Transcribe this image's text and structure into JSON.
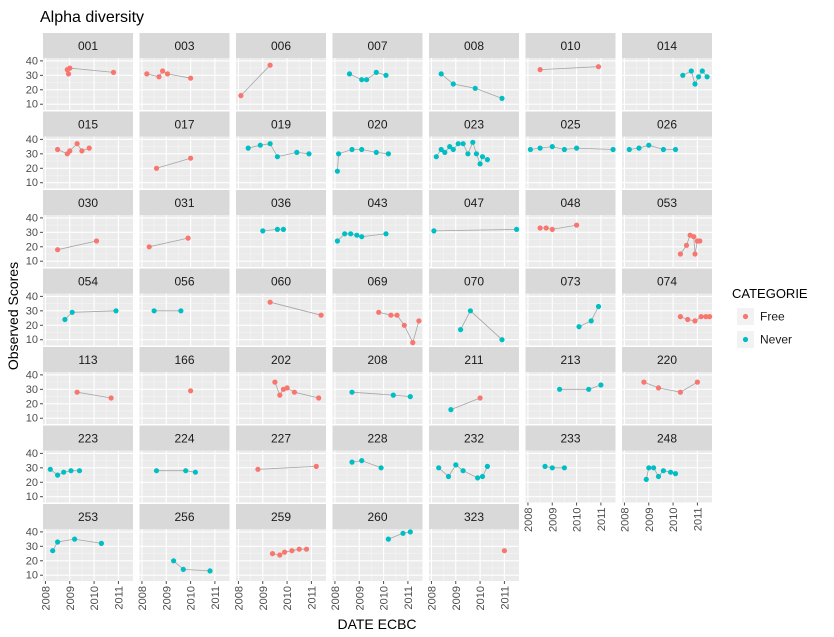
{
  "chart_data": {
    "type": "line",
    "title": "Alpha diversity",
    "xlabel": "DATE ECBC",
    "ylabel": "Observed Scores",
    "xlim": [
      2007.9,
      2011.6
    ],
    "ylim": [
      6,
      42
    ],
    "x_ticks": [
      "2008",
      "2009",
      "2010",
      "2011"
    ],
    "y_ticks": [
      "10",
      "20",
      "30",
      "40"
    ],
    "facet_layout": "7 columns x 7 rows (wrap)",
    "grid": true,
    "legend": {
      "title": "CATEGORIE",
      "position": "right",
      "entries": [
        {
          "label": "Free",
          "color": "#F8766D"
        },
        {
          "label": "Never",
          "color": "#00BFC4"
        }
      ]
    },
    "series": [
      {
        "panel": "001",
        "category": "Free",
        "points": [
          [
            2008.9,
            34
          ],
          [
            2008.95,
            31
          ],
          [
            2009.0,
            35
          ],
          [
            2010.8,
            32
          ]
        ]
      },
      {
        "panel": "003",
        "category": "Free",
        "points": [
          [
            2008.2,
            31
          ],
          [
            2008.7,
            29
          ],
          [
            2008.85,
            33
          ],
          [
            2009.05,
            31
          ],
          [
            2010.0,
            28
          ]
        ]
      },
      {
        "panel": "006",
        "category": "Free",
        "points": [
          [
            2008.1,
            16
          ],
          [
            2009.3,
            37
          ]
        ]
      },
      {
        "panel": "007",
        "category": "Never",
        "points": [
          [
            2008.6,
            31
          ],
          [
            2009.1,
            27
          ],
          [
            2009.3,
            27
          ],
          [
            2009.7,
            32
          ],
          [
            2010.1,
            30
          ]
        ]
      },
      {
        "panel": "008",
        "category": "Never",
        "points": [
          [
            2008.4,
            31
          ],
          [
            2008.9,
            24
          ],
          [
            2009.8,
            21
          ],
          [
            2010.9,
            14
          ]
        ]
      },
      {
        "panel": "010",
        "category": "Free",
        "points": [
          [
            2008.5,
            34
          ],
          [
            2010.9,
            36
          ]
        ]
      },
      {
        "panel": "014",
        "category": "Never",
        "points": [
          [
            2010.4,
            30
          ],
          [
            2010.75,
            33
          ],
          [
            2010.9,
            24
          ],
          [
            2011.05,
            29
          ],
          [
            2011.2,
            33
          ],
          [
            2011.4,
            29
          ]
        ]
      },
      {
        "panel": "015",
        "category": "Free",
        "points": [
          [
            2008.5,
            33
          ],
          [
            2008.9,
            30
          ],
          [
            2009.0,
            32
          ],
          [
            2009.3,
            37
          ],
          [
            2009.5,
            32
          ],
          [
            2009.8,
            34
          ]
        ]
      },
      {
        "panel": "017",
        "category": "Free",
        "points": [
          [
            2008.6,
            20
          ],
          [
            2010.0,
            27
          ]
        ]
      },
      {
        "panel": "019",
        "category": "Never",
        "points": [
          [
            2008.4,
            34
          ],
          [
            2008.9,
            36
          ],
          [
            2009.3,
            37
          ],
          [
            2009.6,
            28
          ],
          [
            2010.4,
            31
          ],
          [
            2010.9,
            30
          ]
        ]
      },
      {
        "panel": "020",
        "category": "Never",
        "points": [
          [
            2008.1,
            18
          ],
          [
            2008.15,
            30
          ],
          [
            2008.7,
            33
          ],
          [
            2009.1,
            33
          ],
          [
            2009.7,
            31
          ],
          [
            2010.2,
            30
          ]
        ]
      },
      {
        "panel": "023",
        "category": "Never",
        "points": [
          [
            2008.2,
            28
          ],
          [
            2008.4,
            33
          ],
          [
            2008.55,
            31
          ],
          [
            2008.75,
            35
          ],
          [
            2008.9,
            33
          ],
          [
            2009.1,
            37
          ],
          [
            2009.3,
            37
          ],
          [
            2009.5,
            30
          ],
          [
            2009.7,
            38
          ],
          [
            2009.85,
            30
          ],
          [
            2010.0,
            23
          ],
          [
            2010.1,
            28
          ],
          [
            2010.3,
            26
          ]
        ]
      },
      {
        "panel": "025",
        "category": "Never",
        "points": [
          [
            2008.1,
            33
          ],
          [
            2008.5,
            34
          ],
          [
            2009.0,
            35
          ],
          [
            2009.5,
            33
          ],
          [
            2010.0,
            34
          ],
          [
            2011.5,
            33
          ]
        ]
      },
      {
        "panel": "026",
        "category": "Never",
        "points": [
          [
            2008.2,
            33
          ],
          [
            2008.6,
            34
          ],
          [
            2009.0,
            36
          ],
          [
            2009.6,
            33
          ],
          [
            2010.1,
            33
          ]
        ]
      },
      {
        "panel": "030",
        "category": "Free",
        "points": [
          [
            2008.5,
            18
          ],
          [
            2010.1,
            24
          ]
        ]
      },
      {
        "panel": "031",
        "category": "Free",
        "points": [
          [
            2008.3,
            20
          ],
          [
            2009.9,
            26
          ]
        ]
      },
      {
        "panel": "036",
        "category": "Never",
        "points": [
          [
            2009.0,
            31
          ],
          [
            2009.6,
            32
          ],
          [
            2009.85,
            32
          ]
        ]
      },
      {
        "panel": "043",
        "category": "Never",
        "points": [
          [
            2008.1,
            24
          ],
          [
            2008.4,
            29
          ],
          [
            2008.65,
            29
          ],
          [
            2008.9,
            28
          ],
          [
            2009.1,
            27
          ],
          [
            2010.1,
            29
          ]
        ]
      },
      {
        "panel": "047",
        "category": "Never",
        "points": [
          [
            2008.1,
            31
          ],
          [
            2011.5,
            32
          ]
        ]
      },
      {
        "panel": "048",
        "category": "Free",
        "points": [
          [
            2008.5,
            33
          ],
          [
            2008.75,
            33
          ],
          [
            2009.0,
            32
          ],
          [
            2010.0,
            35
          ]
        ]
      },
      {
        "panel": "053",
        "category": "Free",
        "points": [
          [
            2010.3,
            15
          ],
          [
            2010.55,
            21
          ],
          [
            2010.7,
            28
          ],
          [
            2010.85,
            27
          ],
          [
            2010.9,
            15
          ],
          [
            2011.0,
            24
          ],
          [
            2011.1,
            24
          ]
        ]
      },
      {
        "panel": "054",
        "category": "Never",
        "points": [
          [
            2008.8,
            24
          ],
          [
            2009.1,
            29
          ],
          [
            2010.9,
            30
          ]
        ]
      },
      {
        "panel": "056",
        "category": "Never",
        "points": [
          [
            2008.5,
            30
          ],
          [
            2009.6,
            30
          ]
        ]
      },
      {
        "panel": "060",
        "category": "Free",
        "points": [
          [
            2009.3,
            36
          ],
          [
            2011.4,
            27
          ]
        ]
      },
      {
        "panel": "069",
        "category": "Free",
        "points": [
          [
            2009.8,
            29
          ],
          [
            2010.3,
            27
          ],
          [
            2010.55,
            27
          ],
          [
            2010.85,
            20
          ],
          [
            2011.2,
            8
          ],
          [
            2011.45,
            23
          ]
        ]
      },
      {
        "panel": "070",
        "category": "Never",
        "points": [
          [
            2009.2,
            17
          ],
          [
            2009.6,
            30
          ],
          [
            2010.9,
            10
          ]
        ]
      },
      {
        "panel": "073",
        "category": "Never",
        "points": [
          [
            2010.1,
            19
          ],
          [
            2010.6,
            23
          ],
          [
            2010.9,
            33
          ]
        ]
      },
      {
        "panel": "074",
        "category": "Free",
        "points": [
          [
            2010.3,
            26
          ],
          [
            2010.6,
            24
          ],
          [
            2010.9,
            23
          ],
          [
            2011.15,
            26
          ],
          [
            2011.35,
            26
          ],
          [
            2011.5,
            26
          ]
        ]
      },
      {
        "panel": "113",
        "category": "Free",
        "points": [
          [
            2009.3,
            28
          ],
          [
            2010.7,
            24
          ]
        ]
      },
      {
        "panel": "166",
        "category": "Free",
        "points": [
          [
            2010.0,
            29
          ]
        ]
      },
      {
        "panel": "202",
        "category": "Free",
        "points": [
          [
            2009.5,
            35
          ],
          [
            2009.7,
            26
          ],
          [
            2009.85,
            30
          ],
          [
            2010.0,
            31
          ],
          [
            2010.3,
            28
          ],
          [
            2011.3,
            24
          ]
        ]
      },
      {
        "panel": "208",
        "category": "Never",
        "points": [
          [
            2008.7,
            28
          ],
          [
            2010.4,
            26
          ],
          [
            2011.1,
            25
          ]
        ]
      },
      {
        "panel": "211",
        "category": "Never",
        "points": [
          [
            2008.8,
            16
          ]
        ]
      },
      {
        "panel": "211",
        "category": "Free",
        "points": [
          [
            2010.0,
            24
          ]
        ]
      },
      {
        "panel": "213",
        "category": "Never",
        "points": [
          [
            2009.3,
            30
          ],
          [
            2010.5,
            30
          ],
          [
            2011.0,
            33
          ]
        ]
      },
      {
        "panel": "220",
        "category": "Free",
        "points": [
          [
            2008.8,
            35
          ],
          [
            2009.4,
            31
          ],
          [
            2010.3,
            28
          ],
          [
            2011.0,
            35
          ]
        ]
      },
      {
        "panel": "223",
        "category": "Never",
        "points": [
          [
            2008.2,
            29
          ],
          [
            2008.5,
            25
          ],
          [
            2008.75,
            27
          ],
          [
            2009.05,
            28
          ],
          [
            2009.4,
            28
          ]
        ]
      },
      {
        "panel": "224",
        "category": "Never",
        "points": [
          [
            2008.6,
            28
          ],
          [
            2009.8,
            28
          ],
          [
            2010.2,
            27
          ]
        ]
      },
      {
        "panel": "227",
        "category": "Free",
        "points": [
          [
            2008.8,
            29
          ],
          [
            2011.2,
            31
          ]
        ]
      },
      {
        "panel": "228",
        "category": "Never",
        "points": [
          [
            2008.7,
            34
          ],
          [
            2009.1,
            35
          ],
          [
            2009.9,
            30
          ]
        ]
      },
      {
        "panel": "232",
        "category": "Never",
        "points": [
          [
            2008.3,
            30
          ],
          [
            2008.7,
            24
          ],
          [
            2009.0,
            32
          ],
          [
            2009.3,
            28
          ],
          [
            2009.9,
            23
          ],
          [
            2010.1,
            24
          ],
          [
            2010.3,
            31
          ]
        ]
      },
      {
        "panel": "233",
        "category": "Never",
        "points": [
          [
            2008.7,
            31
          ],
          [
            2009.0,
            30
          ],
          [
            2009.5,
            30
          ]
        ]
      },
      {
        "panel": "248",
        "category": "Never",
        "points": [
          [
            2008.9,
            22
          ],
          [
            2009.0,
            30
          ],
          [
            2009.2,
            30
          ],
          [
            2009.4,
            24
          ],
          [
            2009.6,
            28
          ],
          [
            2009.9,
            27
          ],
          [
            2010.1,
            26
          ]
        ]
      },
      {
        "panel": "253",
        "category": "Never",
        "points": [
          [
            2008.3,
            27
          ],
          [
            2008.5,
            33
          ],
          [
            2009.2,
            35
          ],
          [
            2010.3,
            32
          ]
        ]
      },
      {
        "panel": "256",
        "category": "Never",
        "points": [
          [
            2009.3,
            20
          ],
          [
            2009.7,
            14
          ],
          [
            2010.8,
            13
          ]
        ]
      },
      {
        "panel": "259",
        "category": "Free",
        "points": [
          [
            2009.4,
            25
          ],
          [
            2009.7,
            24
          ],
          [
            2009.9,
            26
          ],
          [
            2010.2,
            27
          ],
          [
            2010.5,
            28
          ],
          [
            2010.8,
            28
          ]
        ]
      },
      {
        "panel": "260",
        "category": "Never",
        "points": [
          [
            2010.2,
            35
          ],
          [
            2010.8,
            39
          ],
          [
            2011.1,
            40
          ]
        ]
      },
      {
        "panel": "323",
        "category": "Free",
        "points": [
          [
            2011.0,
            27
          ]
        ]
      }
    ]
  }
}
